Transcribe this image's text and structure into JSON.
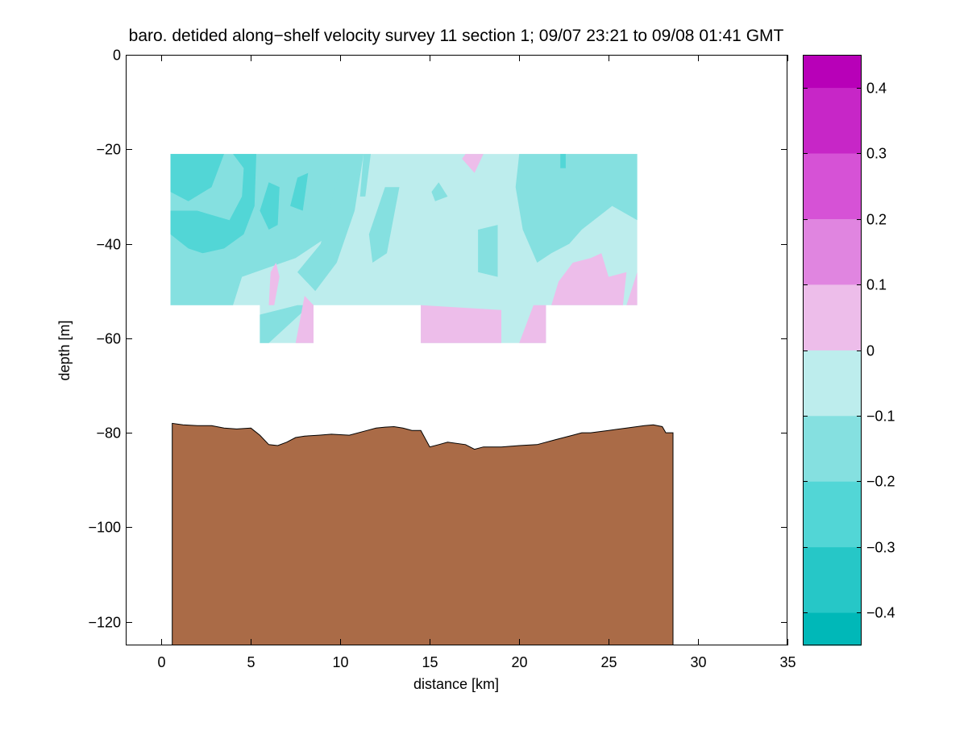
{
  "chart_data": {
    "type": "heatmap",
    "title": "baro. detided along−shelf velocity survey 11 section 1; 09/07 23:21 to 09/08 01:41 GMT",
    "xlabel": "distance [km]",
    "ylabel": "depth [m]",
    "xlim": [
      -2,
      35
    ],
    "ylim": [
      -125,
      0
    ],
    "xticks": [
      "0",
      "5",
      "10",
      "15",
      "20",
      "25",
      "30",
      "35"
    ],
    "xtick_values": [
      0,
      5,
      10,
      15,
      20,
      25,
      30,
      35
    ],
    "yticks": [
      "0",
      "−20",
      "−40",
      "−60",
      "−80",
      "−100",
      "−120"
    ],
    "ytick_values": [
      0,
      -20,
      -40,
      -60,
      -80,
      -100,
      -120
    ],
    "colorbar": {
      "range": [
        -0.45,
        0.45
      ],
      "levels": [
        -0.45,
        -0.4,
        -0.3,
        -0.2,
        -0.1,
        0,
        0.1,
        0.2,
        0.3,
        0.4,
        0.45
      ],
      "colors": [
        "#00b8b8",
        "#26c7c7",
        "#52d6d6",
        "#85e0e0",
        "#bdeded",
        "#edbdea",
        "#e085e0",
        "#d652d6",
        "#c726c7",
        "#b800b8"
      ],
      "tick_values": [
        -0.4,
        -0.3,
        -0.2,
        -0.1,
        0,
        0.1,
        0.2,
        0.3,
        0.4
      ],
      "tick_labels": [
        "−0.4",
        "−0.3",
        "−0.2",
        "−0.1",
        "0",
        "0.1",
        "0.2",
        "0.3",
        "0.4"
      ]
    },
    "velocity_section": {
      "background_level": -0.05,
      "background_color": "#bdeded",
      "footprint": [
        [
          0.5,
          -21
        ],
        [
          26.6,
          -21
        ],
        [
          26.6,
          -53
        ],
        [
          21.5,
          -53
        ],
        [
          21.5,
          -61
        ],
        [
          14.5,
          -61
        ],
        [
          14.5,
          -53
        ],
        [
          8.5,
          -53
        ],
        [
          8.5,
          -61
        ],
        [
          5.5,
          -61
        ],
        [
          5.5,
          -53
        ],
        [
          0.5,
          -53
        ]
      ],
      "patches": [
        {
          "level": -0.15,
          "points": [
            [
              0.5,
              -21
            ],
            [
              10.2,
              -21
            ],
            [
              10.3,
              -33
            ],
            [
              9.5,
              -38
            ],
            [
              7.5,
              -43
            ],
            [
              6.0,
              -45
            ],
            [
              4.5,
              -47
            ],
            [
              4.0,
              -53
            ],
            [
              0.5,
              -53
            ]
          ]
        },
        {
          "level": -0.15,
          "points": [
            [
              10.2,
              -21
            ],
            [
              11.3,
              -21
            ],
            [
              10.8,
              -33
            ],
            [
              9.8,
              -44
            ],
            [
              8.6,
              -50
            ],
            [
              7.6,
              -46
            ],
            [
              8.9,
              -40
            ]
          ]
        },
        {
          "level": -0.15,
          "points": [
            [
              7.6,
              -53
            ],
            [
              8.3,
              -53
            ],
            [
              6.0,
              -61
            ],
            [
              5.5,
              -61
            ],
            [
              5.5,
              -55
            ]
          ]
        },
        {
          "level": -0.25,
          "points": [
            [
              0.5,
              -21
            ],
            [
              3.5,
              -21
            ],
            [
              2.8,
              -28
            ],
            [
              1.5,
              -31
            ],
            [
              0.5,
              -29
            ]
          ]
        },
        {
          "level": -0.25,
          "points": [
            [
              0.5,
              -33
            ],
            [
              2.0,
              -33
            ],
            [
              3.8,
              -35
            ],
            [
              4.5,
              -30
            ],
            [
              4.6,
              -24
            ],
            [
              4.0,
              -21
            ],
            [
              5.3,
              -21
            ],
            [
              5.2,
              -32
            ],
            [
              4.6,
              -38
            ],
            [
              3.5,
              -41
            ],
            [
              2.3,
              -42
            ],
            [
              1.5,
              -41
            ],
            [
              0.5,
              -38
            ]
          ]
        },
        {
          "level": -0.25,
          "points": [
            [
              6.0,
              -27
            ],
            [
              6.6,
              -28
            ],
            [
              6.5,
              -36
            ],
            [
              6.0,
              -37
            ],
            [
              5.5,
              -33
            ]
          ]
        },
        {
          "level": -0.25,
          "points": [
            [
              7.6,
              -26
            ],
            [
              8.2,
              -25
            ],
            [
              7.9,
              -33
            ],
            [
              7.2,
              -32
            ]
          ]
        },
        {
          "level": -0.15,
          "points": [
            [
              11.3,
              -21
            ],
            [
              11.7,
              -21
            ],
            [
              11.4,
              -30
            ],
            [
              11.1,
              -30
            ]
          ]
        },
        {
          "level": -0.15,
          "points": [
            [
              12.5,
              -28
            ],
            [
              13.3,
              -28
            ],
            [
              12.6,
              -42
            ],
            [
              11.8,
              -44
            ],
            [
              11.6,
              -38
            ]
          ]
        },
        {
          "level": -0.15,
          "points": [
            [
              20.0,
              -21
            ],
            [
              26.6,
              -21
            ],
            [
              26.6,
              -35
            ],
            [
              25.2,
              -32
            ],
            [
              23.5,
              -37
            ],
            [
              22.8,
              -40
            ],
            [
              21.8,
              -42
            ],
            [
              21.0,
              -44
            ],
            [
              20.2,
              -37
            ],
            [
              19.8,
              -28
            ]
          ]
        },
        {
          "level": -0.15,
          "points": [
            [
              17.7,
              -37
            ],
            [
              18.8,
              -36
            ],
            [
              18.8,
              -47
            ],
            [
              17.7,
              -46
            ]
          ]
        },
        {
          "level": -0.15,
          "points": [
            [
              15.1,
              -29
            ],
            [
              15.5,
              -27
            ],
            [
              16.0,
              -30
            ],
            [
              15.3,
              -31
            ]
          ]
        },
        {
          "level": -0.25,
          "points": [
            [
              22.3,
              -21
            ],
            [
              22.6,
              -21
            ],
            [
              22.6,
              -24
            ],
            [
              22.3,
              -24
            ]
          ]
        },
        {
          "level": 0.05,
          "points": [
            [
              17.0,
              -21
            ],
            [
              18.0,
              -21
            ],
            [
              17.5,
              -25
            ],
            [
              16.8,
              -22
            ]
          ]
        },
        {
          "level": 0.05,
          "points": [
            [
              21.8,
              -53
            ],
            [
              22.2,
              -48
            ],
            [
              23.0,
              -44
            ],
            [
              24.0,
              -43
            ],
            [
              24.6,
              -42
            ],
            [
              25.0,
              -47
            ],
            [
              26.0,
              -46
            ],
            [
              25.8,
              -53
            ]
          ]
        },
        {
          "level": 0.05,
          "points": [
            [
              26.0,
              -53
            ],
            [
              26.6,
              -46
            ],
            [
              26.6,
              -53
            ]
          ]
        },
        {
          "level": 0.05,
          "points": [
            [
              14.5,
              -53
            ],
            [
              14.5,
              -61
            ],
            [
              19.0,
              -61
            ],
            [
              19.0,
              -54
            ]
          ]
        },
        {
          "level": 0.05,
          "points": [
            [
              20.0,
              -61
            ],
            [
              21.5,
              -61
            ],
            [
              21.5,
              -53
            ],
            [
              20.8,
              -53
            ]
          ]
        },
        {
          "level": 0.05,
          "points": [
            [
              7.5,
              -61
            ],
            [
              8.5,
              -61
            ],
            [
              8.5,
              -53
            ],
            [
              8.0,
              -51
            ]
          ]
        },
        {
          "level": 0.05,
          "points": [
            [
              6.3,
              -53
            ],
            [
              6.6,
              -47
            ],
            [
              6.4,
              -44
            ],
            [
              6.1,
              -46
            ],
            [
              6.0,
              -53
            ]
          ]
        }
      ]
    },
    "bathymetry": {
      "fill": "#aa6b47",
      "x": [
        0.6,
        1.2,
        2.0,
        2.8,
        3.5,
        4.2,
        5.0,
        5.5,
        6.0,
        6.5,
        7.0,
        7.5,
        8.0,
        8.8,
        9.5,
        10.5,
        11.5,
        12.0,
        12.5,
        13.0,
        13.5,
        14.0,
        14.5,
        15.0,
        15.5,
        16.0,
        17.0,
        17.5,
        18.0,
        19.0,
        20.0,
        21.0,
        22.0,
        23.0,
        23.5,
        24.0,
        25.0,
        26.0,
        27.0,
        27.5,
        28.0,
        28.2,
        28.6
      ],
      "depth": [
        -78,
        -78.3,
        -78.5,
        -78.5,
        -79,
        -79.2,
        -79,
        -80.5,
        -82.5,
        -82.7,
        -82,
        -81,
        -80.7,
        -80.5,
        -80.3,
        -80.5,
        -79.5,
        -79,
        -78.8,
        -78.7,
        -79,
        -79.5,
        -79.5,
        -83,
        -82.5,
        -82,
        -82.5,
        -83.5,
        -83,
        -83,
        -82.7,
        -82.5,
        -81.5,
        -80.5,
        -80,
        -80,
        -79.5,
        -79,
        -78.5,
        -78.3,
        -78.7,
        -80,
        -80
      ]
    }
  }
}
